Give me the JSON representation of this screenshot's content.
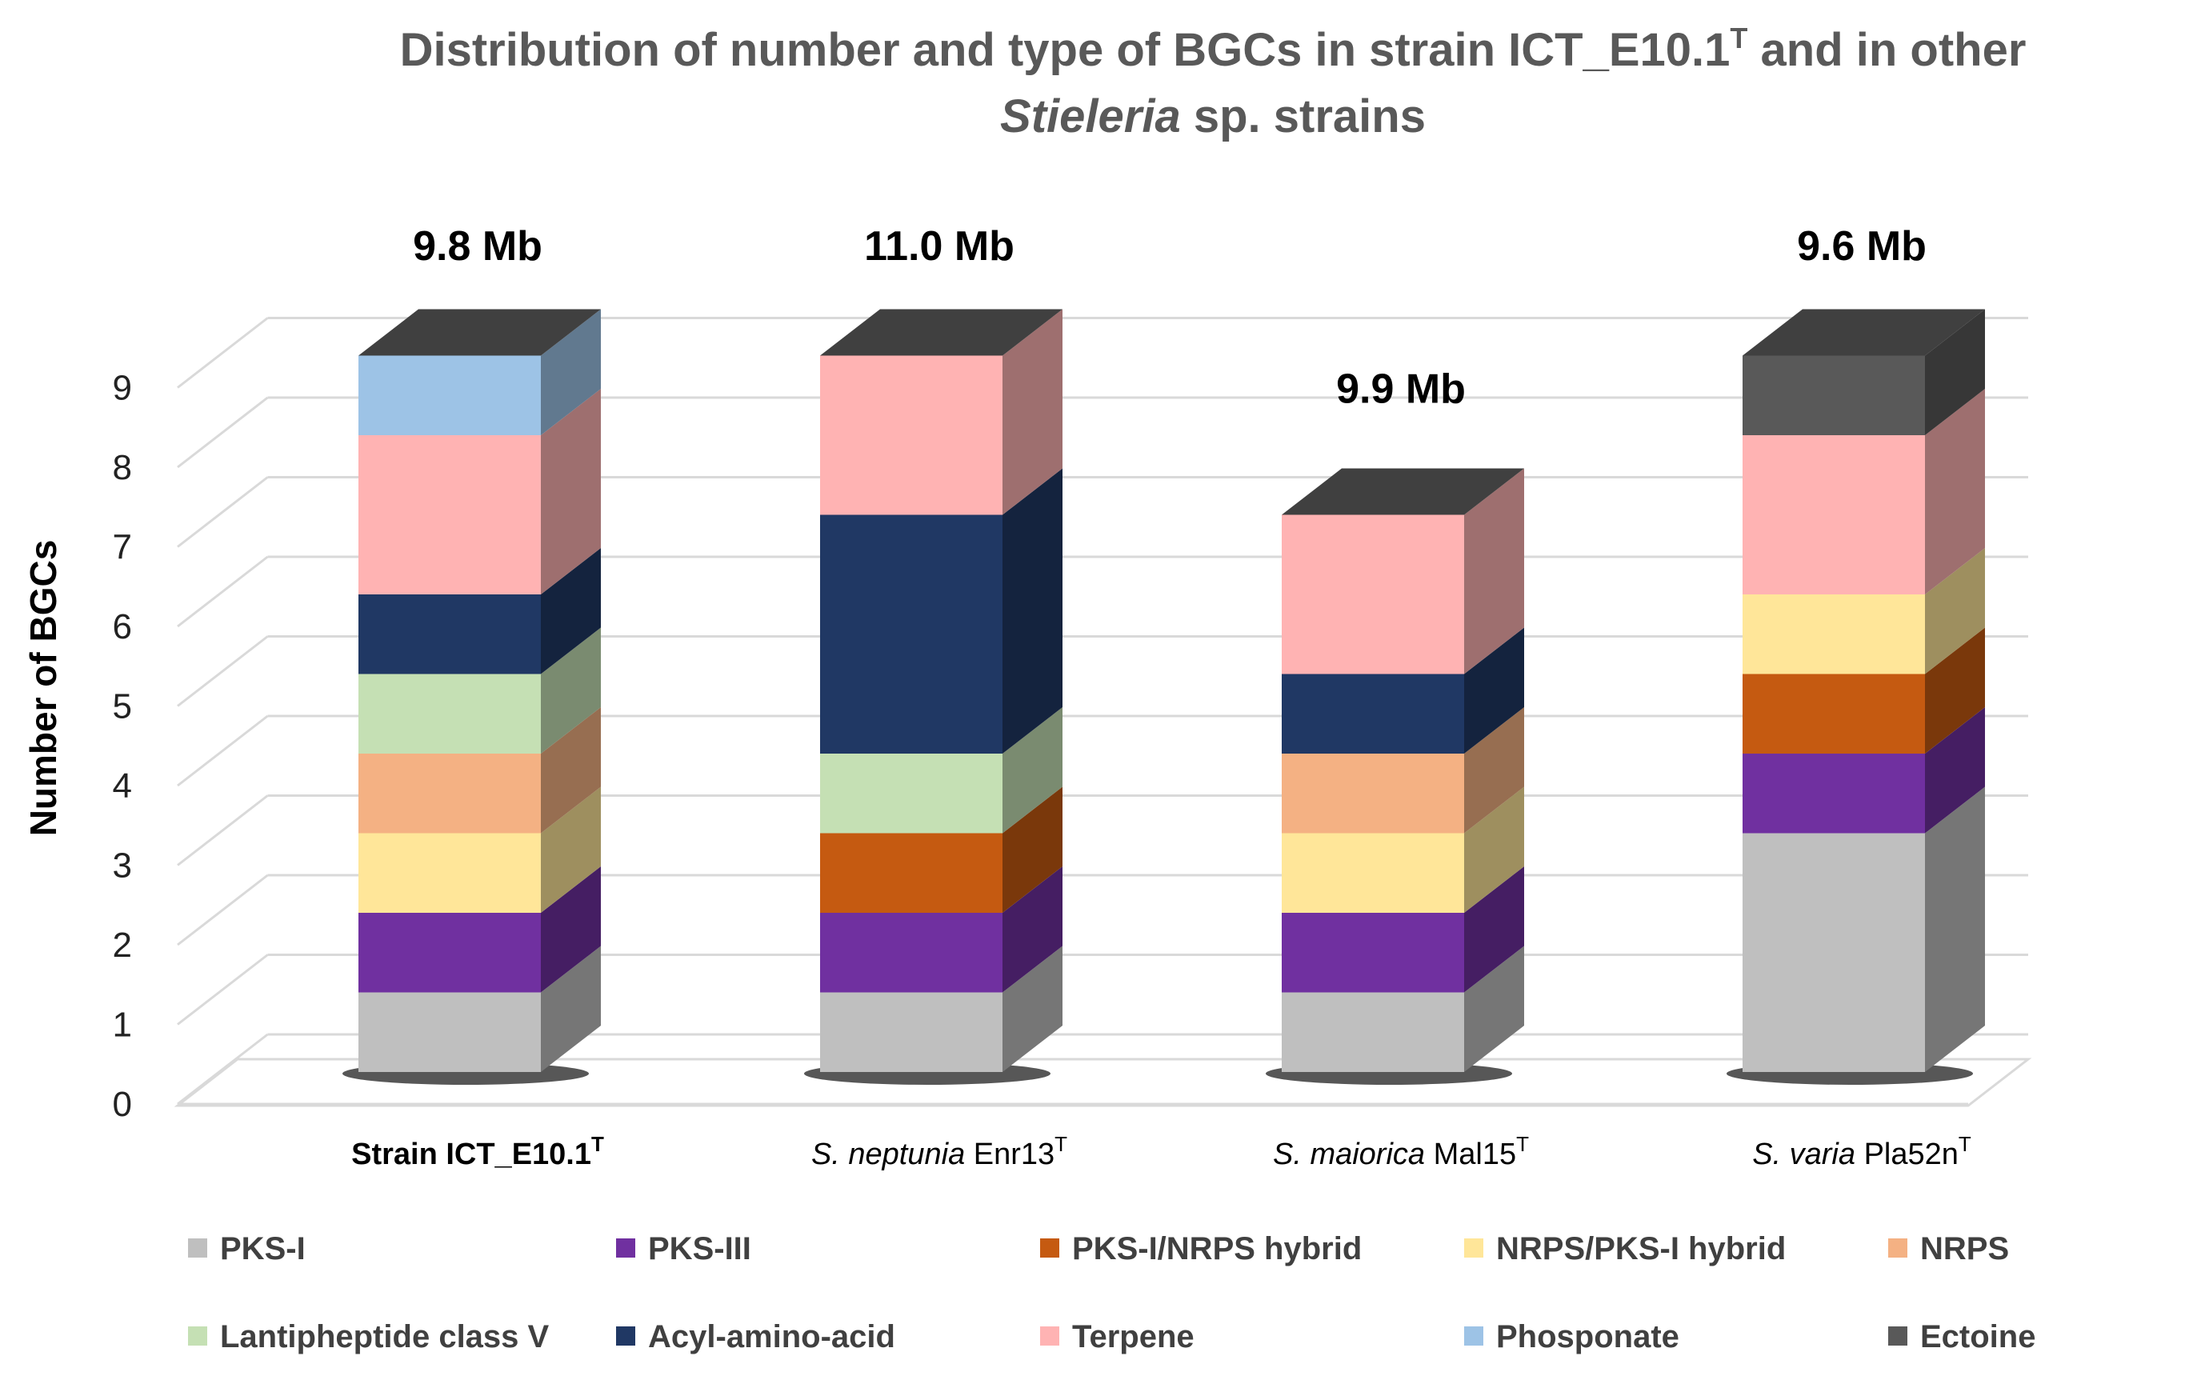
{
  "chart_data": {
    "type": "bar",
    "stacked": true,
    "title_line1_main": "Distribution of number and type of BGCs in strain ICT_E10.1",
    "title_line1_sup": "T",
    "title_line1_end": " and in other",
    "title_line2_italic": "Stieleria",
    "title_line2_rest": " sp. strains",
    "ylabel": "Number of BGCs",
    "ylim": [
      0,
      9
    ],
    "yticks": [
      "0",
      "1",
      "2",
      "3",
      "4",
      "5",
      "6",
      "7",
      "8",
      "9"
    ],
    "categories": [
      {
        "italic": "",
        "normal": "Strain ICT_E10.1",
        "sup": "T",
        "bold": true
      },
      {
        "italic": "S. neptunia",
        "normal": " Enr13",
        "sup": "T",
        "bold": false
      },
      {
        "italic": "S. maiorica",
        "normal": " Mal15",
        "sup": "T",
        "bold": false
      },
      {
        "italic": "S. varia",
        "normal": " Pla52n",
        "sup": "T",
        "bold": false
      }
    ],
    "genome_sizes": [
      "9.8 Mb",
      "11.0 Mb",
      "9.9 Mb",
      "9.6 Mb"
    ],
    "series": [
      {
        "name": "PKS-I",
        "color": "#bfbfbf",
        "values": [
          1,
          1,
          1,
          3
        ]
      },
      {
        "name": "PKS-III",
        "color": "#7030a0",
        "values": [
          1,
          1,
          1,
          1
        ]
      },
      {
        "name": "PKS-I/NRPS hybrid",
        "color": "#c55a11",
        "values": [
          0,
          1,
          0,
          1
        ]
      },
      {
        "name": "NRPS/PKS-I hybrid",
        "color": "#ffe699",
        "values": [
          1,
          0,
          1,
          1
        ]
      },
      {
        "name": "NRPS",
        "color": "#f4b183",
        "values": [
          1,
          0,
          1,
          0
        ]
      },
      {
        "name": "Lantipheptide class V",
        "color": "#c5e0b4",
        "values": [
          1,
          1,
          0,
          0
        ]
      },
      {
        "name": "Acyl-amino-acid",
        "color": "#203864",
        "values": [
          1,
          3,
          1,
          0
        ]
      },
      {
        "name": "Terpene",
        "color": "#ffb3b3",
        "values": [
          2,
          2,
          2,
          2
        ]
      },
      {
        "name": "Phosponate",
        "color": "#9dc3e6",
        "values": [
          1,
          0,
          0,
          0
        ]
      },
      {
        "name": "Ectoine",
        "color": "#595959",
        "values": [
          0,
          0,
          0,
          1
        ]
      }
    ],
    "legend_position": "bottom",
    "grid": true
  }
}
